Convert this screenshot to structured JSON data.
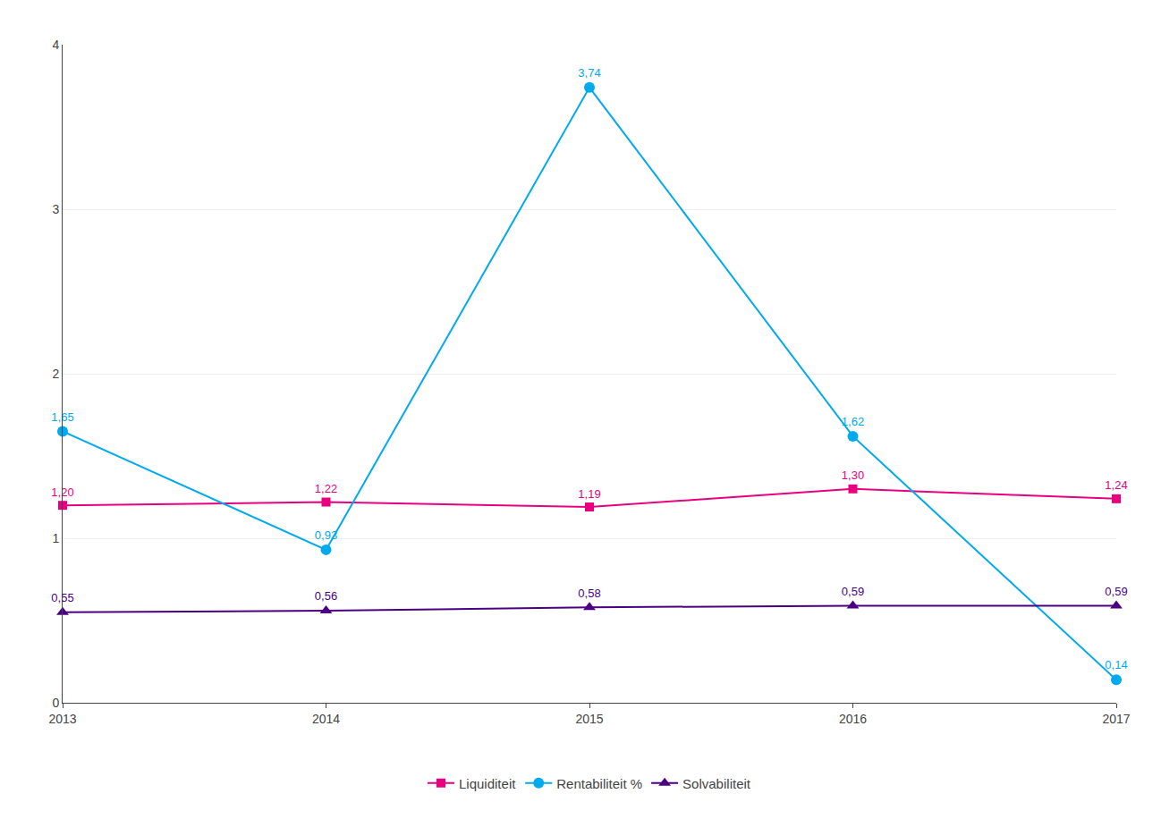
{
  "chart_data": {
    "type": "line",
    "x": [
      2013,
      2014,
      2015,
      2016,
      2017
    ],
    "xlim": [
      2013,
      2017
    ],
    "xticks": [
      2013,
      2014,
      2015,
      2016,
      2017
    ],
    "ylim": [
      0,
      4
    ],
    "yticks": [
      0,
      1,
      2,
      3,
      4
    ],
    "grid": true,
    "legend": "bottom",
    "data_labels": true,
    "series": [
      {
        "name": "Liquiditeit",
        "color": "#E8007F",
        "marker": "square",
        "values": [
          1.2,
          1.22,
          1.19,
          1.3,
          1.24
        ],
        "value_labels": [
          "1,20",
          "1,22",
          "1,19",
          "1,30",
          "1,24"
        ]
      },
      {
        "name": "Rentabiliteit %",
        "color": "#00AAEE",
        "marker": "circle",
        "values": [
          1.65,
          0.93,
          3.74,
          1.62,
          0.14
        ],
        "value_labels": [
          "1,65",
          "0,93",
          "3,74",
          "1,62",
          "0,14"
        ]
      },
      {
        "name": "Solvabiliteit",
        "color": "#4B0082",
        "marker": "triangle-up",
        "values": [
          0.55,
          0.56,
          0.58,
          0.59,
          0.59
        ],
        "value_labels": [
          "0,55",
          "0,56",
          "0,58",
          "0,59",
          "0,59"
        ]
      }
    ]
  }
}
